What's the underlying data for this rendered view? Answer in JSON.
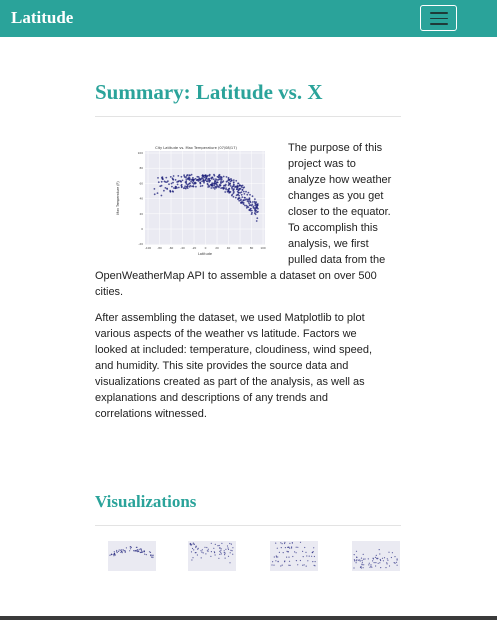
{
  "navbar": {
    "brand": "Latitude",
    "toggler_icon": "hamburger-menu-icon",
    "color": "#2aa39a"
  },
  "main": {
    "title": "Summary: Latitude vs. X",
    "image_title": "City Latitude vs. Max Temperature (07/08/17)",
    "image_xlabel": "Latitude",
    "image_ylabel": "Max Temperature (F)",
    "image_y_ticks": [
      "100",
      "80",
      "60",
      "40",
      "20",
      "0",
      "-20"
    ],
    "image_x_ticks": [
      "-100",
      "-80",
      "-60",
      "-40",
      "-20",
      "0",
      "20",
      "40",
      "60",
      "80",
      "100"
    ],
    "paragraph1_lines": [
      "The purpose of this",
      "project was to",
      "analyze how weather",
      "changes as you get",
      "closer to the equator.",
      "To accomplish this",
      "analysis, we first",
      "pulled data from the",
      "OpenWeatherMap API to assemble a dataset on over 500",
      "cities."
    ],
    "paragraph2_lines": [
      "After assembling the dataset, we used Matplotlib to plot",
      "various aspects of the weather vs latitude. Factors we",
      "looked at included: temperature, cloudiness, wind speed,",
      "and humidity. This site provides the source data and",
      "visualizations created as part of the analysis, as well as",
      "explanations and descriptions of any trends and",
      "correlations witnessed."
    ]
  },
  "visualizations": {
    "title": "Visualizations",
    "thumbnails": [
      "max-temperature-plot",
      "humidity-plot",
      "cloudiness-plot",
      "wind-speed-plot"
    ]
  }
}
